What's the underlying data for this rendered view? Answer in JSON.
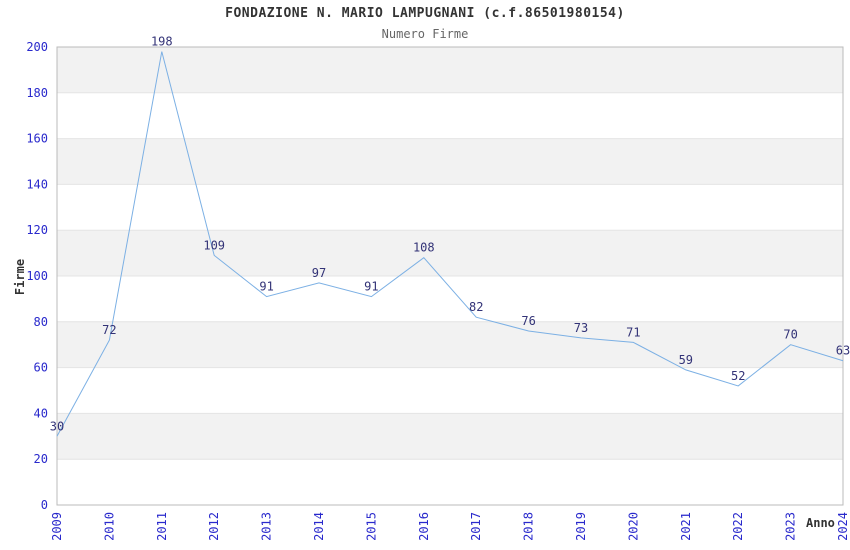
{
  "chart_data": {
    "type": "line",
    "title": "FONDAZIONE N. MARIO LAMPUGNANI (c.f.86501980154)",
    "subtitle": "Numero Firme",
    "xlabel": "Anno",
    "ylabel": "Firme",
    "categories": [
      "2009",
      "2010",
      "2011",
      "2012",
      "2013",
      "2014",
      "2015",
      "2016",
      "2017",
      "2018",
      "2019",
      "2020",
      "2021",
      "2022",
      "2023",
      "2024"
    ],
    "values": [
      30,
      72,
      198,
      109,
      91,
      97,
      91,
      108,
      82,
      76,
      73,
      71,
      59,
      52,
      70,
      63
    ],
    "ylim": [
      0,
      200
    ],
    "ytick_step": 20,
    "grid": true,
    "legend": "none",
    "band_fill": "alternating-horizontal",
    "data_labels": true,
    "colors": {
      "line": "#7cb0e4",
      "data_label": "#333377",
      "tick_label": "#2929cc",
      "title": "#333333",
      "subtitle": "#666666",
      "axis_label": "#333333",
      "band": "#f2f2f2",
      "gridline": "#e4e4e4",
      "plot_border": "#bbbbbb",
      "background": "#ffffff"
    }
  }
}
